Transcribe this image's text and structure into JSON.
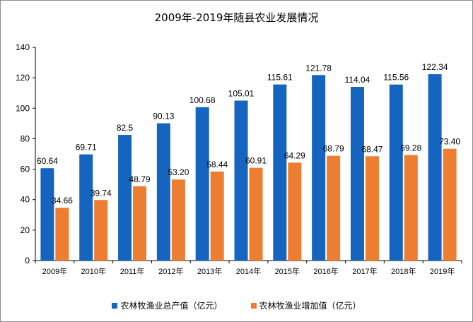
{
  "title": "2009年-2019年随县农业发展情况",
  "legend": {
    "item1": "农林牧渔业总产值（亿元）",
    "item2": "农林牧渔业增加值（亿元）"
  },
  "colors": {
    "series1": "#1565c0",
    "series2": "#ed7d31",
    "axis": "#000000"
  },
  "chart_data": {
    "type": "bar",
    "title": "2009年-2019年随县农业发展情况",
    "xlabel": "",
    "ylabel": "",
    "ylim": [
      0,
      140
    ],
    "yticks": [
      0,
      20,
      40,
      60,
      80,
      100,
      120,
      140
    ],
    "grid": false,
    "legend_position": "bottom",
    "categories": [
      "2009年",
      "2010年",
      "2011年",
      "2012年",
      "2013年",
      "2014年",
      "2015年",
      "2016年",
      "2017年",
      "2018年",
      "2019年"
    ],
    "series": [
      {
        "name": "农林牧渔业总产值（亿元）",
        "values": [
          60.64,
          69.71,
          82.5,
          90.13,
          100.68,
          105.01,
          115.61,
          121.78,
          114.04,
          115.56,
          122.34
        ],
        "labels": [
          "60.64",
          "69.71",
          "82.5",
          "90.13",
          "100.68",
          "105.01",
          "115.61",
          "121.78",
          "114.04",
          "115.56",
          "122.34"
        ]
      },
      {
        "name": "农林牧渔业增加值（亿元）",
        "values": [
          34.66,
          39.74,
          48.79,
          53.2,
          58.44,
          60.91,
          64.29,
          68.79,
          68.47,
          69.28,
          73.4
        ],
        "labels": [
          "34.66",
          "39.74",
          "48.79",
          "53.20",
          "58.44",
          "60.91",
          "64.29",
          "68.79",
          "68.47",
          "69.28",
          "73.40"
        ]
      }
    ]
  }
}
